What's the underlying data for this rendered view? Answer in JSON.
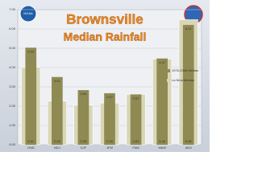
{
  "logo_text": "NOAA",
  "chart_data": {
    "type": "bar",
    "title": "Brownsville",
    "subtitle": "Median Rainfall",
    "categories": [
      "OND",
      "NDJ",
      "DJF",
      "JFM",
      "FMA",
      "MAM",
      "AMJ"
    ],
    "series": [
      {
        "name": "La Nina Median",
        "color": "#d9d6b8",
        "values": [
          4.01,
          2.26,
          2.05,
          2.16,
          2.61,
          4.44,
          6.48
        ]
      },
      {
        "name": "1976-2006 Median",
        "color": "#8f8a52",
        "values": [
          5.03,
          3.51,
          2.83,
          2.67,
          2.61,
          4.47,
          6.21
        ]
      }
    ],
    "ylim": [
      0,
      7
    ],
    "yticks": [
      {
        "value": 0,
        "label": "0.00"
      },
      {
        "value": 1,
        "label": "1.00"
      },
      {
        "value": 2,
        "label": "2.00"
      },
      {
        "value": 3,
        "label": "3.00"
      },
      {
        "value": 4,
        "label": "4.00"
      },
      {
        "value": 5,
        "label": "5.00"
      },
      {
        "value": 6,
        "label": "6.00"
      },
      {
        "value": 7,
        "label": "7.00"
      }
    ],
    "grid": true,
    "legend": "right"
  }
}
